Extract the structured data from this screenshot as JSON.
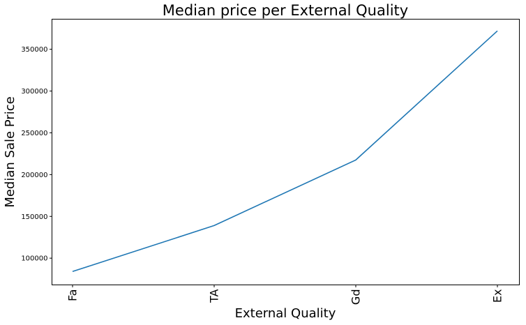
{
  "chart_data": {
    "type": "line",
    "title": "Median price per External Quality",
    "xlabel": "External Quality",
    "ylabel": "Median Sale Price",
    "categories": [
      "Fa",
      "TA",
      "Gd",
      "Ex"
    ],
    "series": [
      {
        "values": [
          84000,
          139000,
          217500,
          372000
        ],
        "color": "#1f77b4"
      }
    ],
    "ylim": [
      68000,
      386000
    ],
    "yticks": [
      100000,
      150000,
      200000,
      250000,
      300000,
      350000
    ],
    "ytick_labels": [
      "100000",
      "150000",
      "200000",
      "250000",
      "300000",
      "350000"
    ],
    "grid": false,
    "legend": "none"
  }
}
